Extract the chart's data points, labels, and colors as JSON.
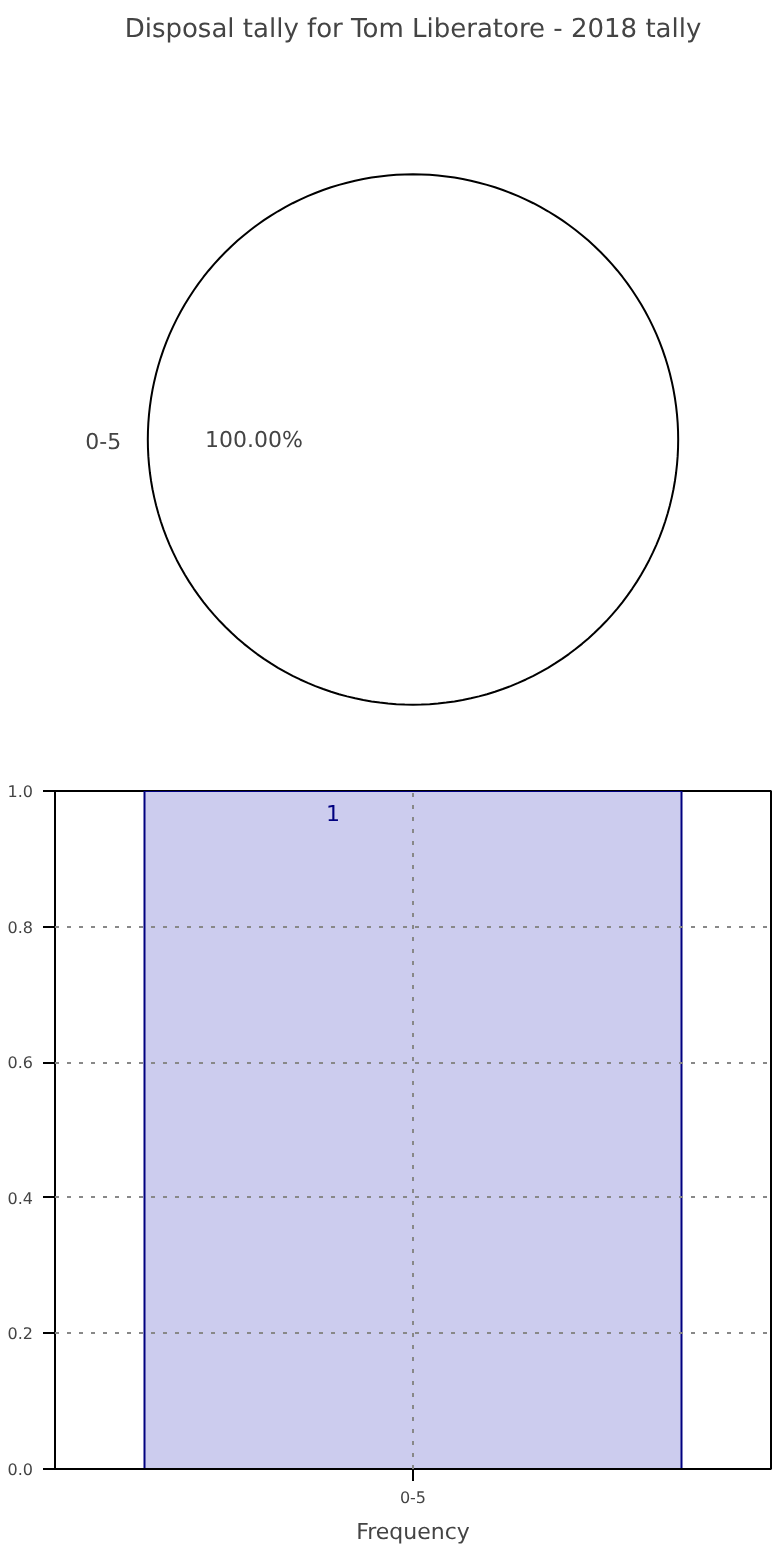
{
  "chart_data": [
    {
      "type": "pie",
      "title": "Disposal tally for Tom Liberatore - 2018 tally",
      "categories": [
        "0-5"
      ],
      "values": [
        100
      ],
      "colors": [
        "#ffffff"
      ],
      "value_labels": [
        "100.00%"
      ]
    },
    {
      "type": "bar",
      "categories": [
        "0-5"
      ],
      "values": [
        1
      ],
      "color": "#ccccee",
      "xlabel": "Frequency",
      "ylim": [
        0,
        1
      ],
      "yticks": [
        {
          "value": 0,
          "label": "0.0"
        },
        0.2,
        0.4,
        0.6,
        0.8,
        {
          "value": 1,
          "label": "1.0"
        }
      ],
      "grid": true,
      "line_style": "dotted",
      "data_labels": true
    }
  ]
}
